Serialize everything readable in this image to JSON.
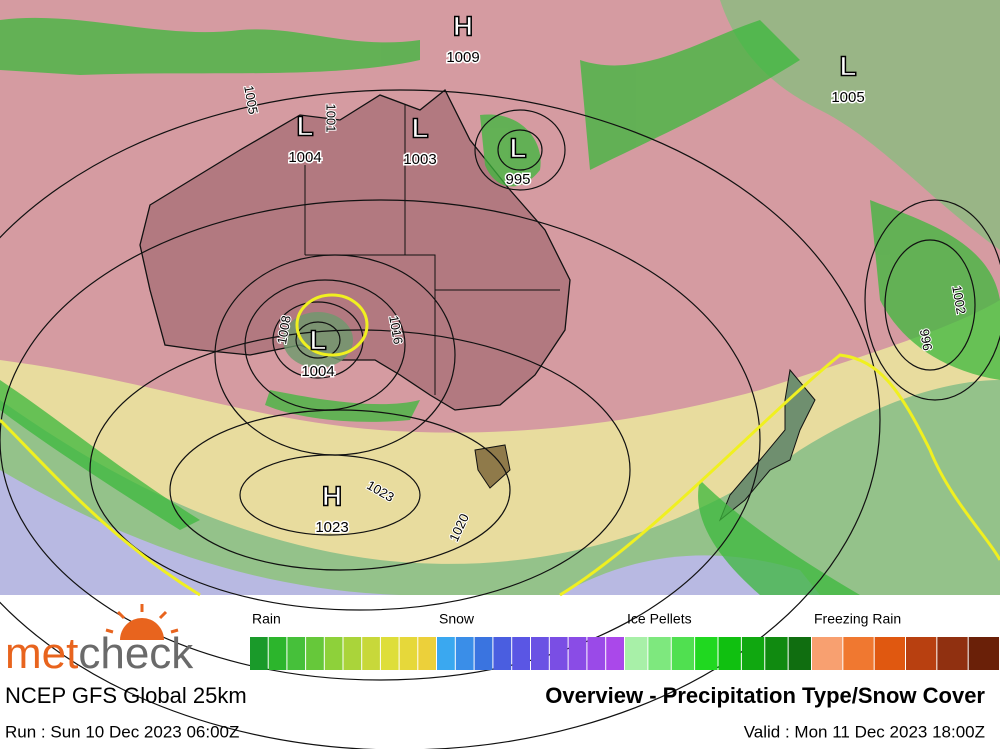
{
  "map": {
    "pressure_centers": [
      {
        "kind": "H",
        "value": 1009
      },
      {
        "kind": "L",
        "value": 1005
      },
      {
        "kind": "L",
        "value": 1004
      },
      {
        "kind": "L",
        "value": 1003
      },
      {
        "kind": "L",
        "value": 995
      },
      {
        "kind": "L",
        "value": 1004
      },
      {
        "kind": "H",
        "value": 1023
      }
    ],
    "isobar_labels": [
      1005,
      1001,
      1008,
      1016,
      1023,
      1020,
      1002,
      996
    ]
  },
  "legend": {
    "groups": [
      {
        "label": "Rain",
        "colors": [
          "#1a9a2a",
          "#2cb52c",
          "#46c03a",
          "#66c83a",
          "#8ed13a",
          "#aad43a",
          "#c8d83a",
          "#dede3a",
          "#e6d83a",
          "#ecd03a"
        ]
      },
      {
        "label": "Snow",
        "colors": [
          "#3aa8f0",
          "#3a8ee8",
          "#3a74e0",
          "#4a5ee0",
          "#5a56e4",
          "#6a52e4",
          "#7a4ee4",
          "#8a4ce6",
          "#9a4ae8",
          "#aa48ea"
        ]
      },
      {
        "label": "Ice Pellets",
        "colors": [
          "#a8f0a8",
          "#7ee87e",
          "#50e050",
          "#20d820",
          "#10c010",
          "#10a810",
          "#108a10",
          "#106e10"
        ]
      },
      {
        "label": "Freezing Rain",
        "colors": [
          "#f8a070",
          "#f07830",
          "#e05810",
          "#b84010",
          "#903010",
          "#6a2008"
        ]
      }
    ]
  },
  "footer": {
    "logo": [
      "met",
      "check"
    ],
    "model": "NCEP GFS Global 25km",
    "title": "Overview - Precipitation Type/Snow Cover",
    "run": "Run : Sun 10 Dec 2023 06:00Z",
    "valid": "Valid : Mon 11 Dec 2023 18:00Z"
  }
}
